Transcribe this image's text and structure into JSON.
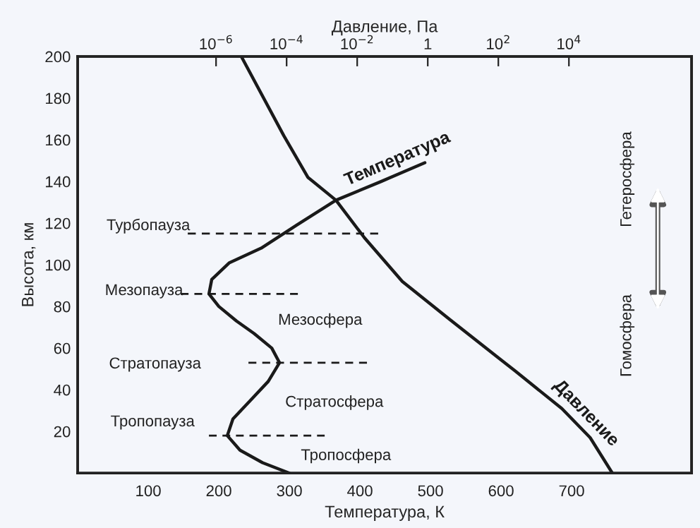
{
  "chart_data": {
    "type": "line",
    "xlabel": "Температура, К",
    "ylabel": "Высота, км",
    "x2label": "Давление, Па",
    "xlim": [
      0,
      870
    ],
    "xticks": [
      100,
      200,
      300,
      400,
      500,
      600,
      700
    ],
    "ylim": [
      0,
      200
    ],
    "yticks": [
      20,
      40,
      60,
      80,
      100,
      120,
      140,
      160,
      180,
      200
    ],
    "x2lim": [
      1.2e-10,
      30000000.0
    ],
    "x2ticks": [
      {
        "value": 1e-06,
        "label": "10$^{−6}$"
      },
      {
        "value": 0.0001,
        "label": "10$^{−4}$"
      },
      {
        "value": 0.01,
        "label": "10$^{−2}$"
      },
      1,
      {
        "value": 100.0,
        "label": "10$^{2}$"
      },
      {
        "value": 10000.0,
        "label": "10$^{4}$"
      }
    ],
    "log": "x2",
    "grid": false,
    "legend": false,
    "marker": "none",
    "series": [
      {
        "name": "Температура",
        "color": "#1a1a1a",
        "line_style": "solid",
        "x": [
          300,
          262,
          230,
          212,
          220,
          245,
          270,
          286,
          275,
          250,
          225,
          200,
          186,
          190,
          215,
          260,
          310,
          366,
          430,
          492
        ],
        "values": [
          0,
          5,
          11,
          18,
          26,
          35,
          44,
          53,
          60,
          67,
          73,
          80,
          86,
          93,
          101,
          108,
          119,
          131,
          140,
          149
        ]
      },
      {
        "name": "Давление",
        "axis": "x2",
        "color": "#1a1a1a",
        "line_style": "solid",
        "x": [
          5.2e-06,
          8.3e-05,
          0.0004,
          0.0025,
          0.016,
          0.19,
          4,
          300,
          6300,
          40000.0,
          170000.0
        ],
        "values": [
          200,
          162,
          142,
          131,
          113,
          92,
          74,
          49,
          31,
          17,
          0
        ]
      },
      {
        "color": "#1a1a1a",
        "line_style": "dashed",
        "x": [
          156,
          426
        ],
        "values": [
          115,
          115
        ]
      },
      {
        "color": "#1a1a1a",
        "line_style": "dashed",
        "x": [
          146,
          312
        ],
        "values": [
          86,
          86
        ]
      },
      {
        "color": "#1a1a1a",
        "line_style": "dashed",
        "x": [
          242,
          410
        ],
        "values": [
          53,
          53
        ]
      },
      {
        "color": "#1a1a1a",
        "line_style": "dashed",
        "x": [
          186,
          350
        ],
        "values": [
          18,
          18
        ]
      }
    ],
    "annotations": [
      "Турбопауза",
      "Мезопауза",
      "Стратопауза",
      "Тропопауза",
      "Мезосфера",
      "Стратосфера",
      "Тропосфера",
      "Гетеросфера",
      "Гомосфера"
    ]
  }
}
